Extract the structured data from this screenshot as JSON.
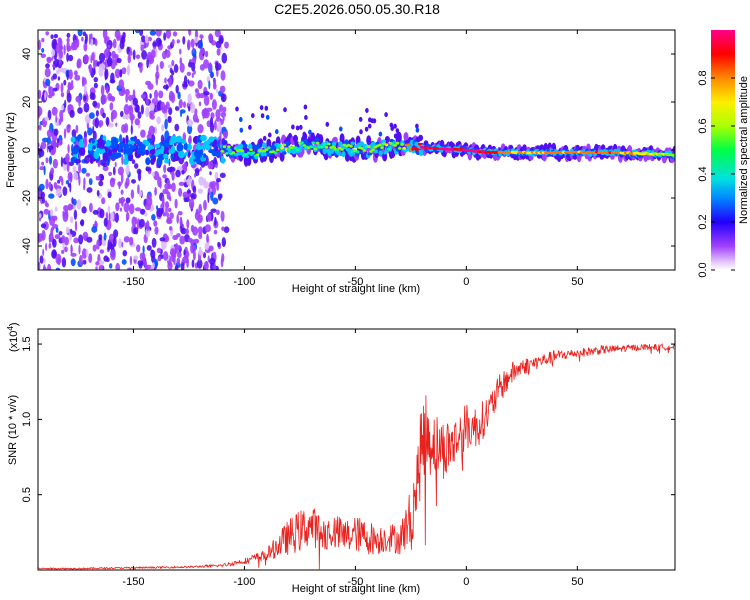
{
  "title": "C2E5.2026.050.05.30.R18",
  "chart_data": [
    {
      "type": "heatmap",
      "name": "spectrogram",
      "xlabel": "Height of straight line (km)",
      "ylabel": "Frequency (Hz)",
      "xlim": [
        -193,
        94
      ],
      "ylim": [
        -50,
        50
      ],
      "x_ticks": [
        -150,
        -100,
        -50,
        0,
        50
      ],
      "y_ticks": [
        -40,
        -20,
        0,
        20,
        40
      ],
      "colorbar": {
        "label": "Normalized spectral amplitude",
        "range": [
          0,
          1
        ],
        "ticks": [
          "0.0",
          "0.2",
          "0.4",
          "0.6",
          "0.8"
        ],
        "tick_values": [
          0,
          0.2,
          0.4,
          0.6,
          0.8
        ],
        "colors": [
          "#ffffff",
          "#c77dff",
          "#8a2be2",
          "#0000ff",
          "#00ccff",
          "#00ff66",
          "#aaff00",
          "#ffff00",
          "#ff8800",
          "#ff0000",
          "#ff00aa"
        ]
      },
      "noise_region_x": [
        -193,
        -108
      ],
      "center_track": [
        {
          "x": -108,
          "f": 0,
          "a": 0.45
        },
        {
          "x": -95,
          "f": -1,
          "a": 0.45
        },
        {
          "x": -80,
          "f": 1,
          "a": 0.5
        },
        {
          "x": -70,
          "f": 2,
          "a": 0.45
        },
        {
          "x": -60,
          "f": 1,
          "a": 0.45
        },
        {
          "x": -45,
          "f": 0,
          "a": 0.5
        },
        {
          "x": -30,
          "f": 2,
          "a": 0.5
        },
        {
          "x": -20,
          "f": 1,
          "a": 0.95
        },
        {
          "x": -10,
          "f": 0.5,
          "a": 0.95
        },
        {
          "x": 0,
          "f": 0,
          "a": 0.95
        },
        {
          "x": 10,
          "f": -1,
          "a": 0.9
        },
        {
          "x": 20,
          "f": -1,
          "a": 0.6
        },
        {
          "x": 40,
          "f": -1,
          "a": 0.65
        },
        {
          "x": 60,
          "f": -1,
          "a": 0.75
        },
        {
          "x": 80,
          "f": -1.5,
          "a": 0.6
        },
        {
          "x": 94,
          "f": -2,
          "a": 0.5
        }
      ]
    },
    {
      "type": "line",
      "name": "snr",
      "xlabel": "Height of straight line (km)",
      "ylabel": "SNR (10 * v/v)",
      "scale_label": "(x10",
      "scale_exponent": "4",
      "scale_close": ")",
      "xlim": [
        -193,
        94
      ],
      "ylim": [
        0,
        1.6
      ],
      "x_ticks": [
        -150,
        -100,
        -50,
        0,
        50
      ],
      "y_ticks": [
        "0.5",
        "1.0",
        "1.5"
      ],
      "y_tick_values": [
        0.5,
        1.0,
        1.5
      ],
      "color": "#e8221e",
      "series": [
        {
          "name": "SNR",
          "x": [
            -193,
            -175,
            -150,
            -125,
            -110,
            -100,
            -90,
            -80,
            -75,
            -70,
            -65,
            -60,
            -55,
            -50,
            -45,
            -40,
            -35,
            -30,
            -25,
            -22,
            -20,
            -18,
            -15,
            -10,
            -5,
            0,
            5,
            10,
            15,
            20,
            25,
            30,
            40,
            50,
            60,
            70,
            80,
            94
          ],
          "y": [
            0.01,
            0.01,
            0.015,
            0.02,
            0.03,
            0.06,
            0.1,
            0.22,
            0.26,
            0.3,
            0.24,
            0.26,
            0.22,
            0.24,
            0.22,
            0.2,
            0.22,
            0.2,
            0.35,
            0.6,
            0.85,
            0.9,
            0.85,
            0.8,
            0.85,
            0.95,
            0.95,
            1.05,
            1.2,
            1.3,
            1.35,
            1.37,
            1.42,
            1.44,
            1.46,
            1.47,
            1.48,
            1.48
          ],
          "noise_amplitude": [
            0.004,
            0.004,
            0.005,
            0.006,
            0.01,
            0.02,
            0.04,
            0.12,
            0.14,
            0.14,
            0.12,
            0.12,
            0.12,
            0.12,
            0.12,
            0.1,
            0.1,
            0.1,
            0.2,
            0.25,
            0.3,
            0.3,
            0.22,
            0.2,
            0.18,
            0.16,
            0.14,
            0.12,
            0.1,
            0.08,
            0.06,
            0.05,
            0.04,
            0.03,
            0.03,
            0.025,
            0.02,
            0.02
          ]
        }
      ]
    }
  ]
}
